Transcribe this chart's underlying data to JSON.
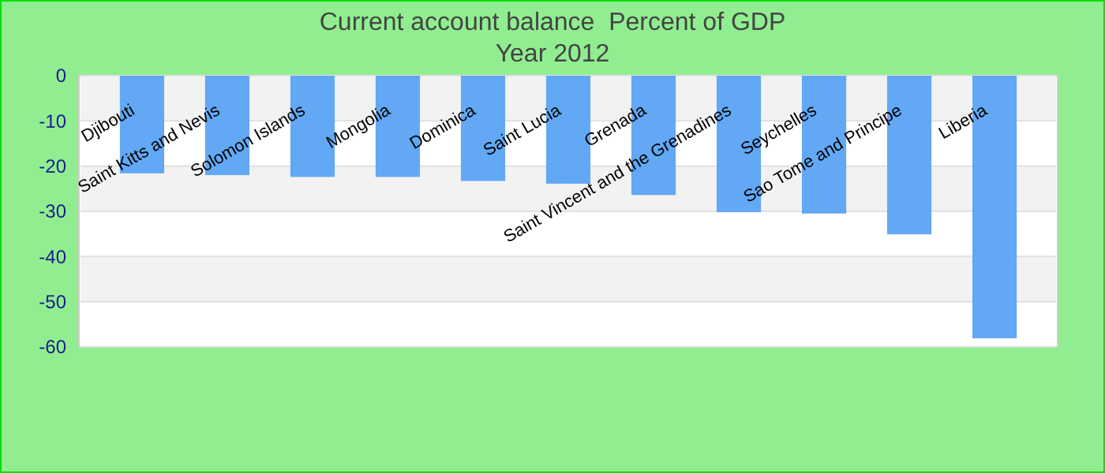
{
  "chart_data": {
    "type": "bar",
    "title": "Current account balance  Percent of GDP",
    "subtitle": "Year 2012",
    "categories": [
      "Djibouti",
      "Saint Kitts and Nevis",
      "Solomon Islands",
      "Mongolia",
      "Dominica",
      "Saint Lucia",
      "Grenada",
      "Saint Vincent and the Grenadines",
      "Seychelles",
      "Sao Tome and Principe",
      "Liberia"
    ],
    "values": [
      -21.6,
      -22,
      -22.4,
      -22.4,
      -23.3,
      -23.9,
      -26.4,
      -30.2,
      -30.5,
      -35.1,
      -58.1
    ],
    "color": "#62a8f4",
    "ylim": [
      -60,
      0
    ],
    "yticks": [
      0,
      -10,
      -20,
      -30,
      -40,
      -50,
      -60
    ],
    "grid": "y"
  }
}
